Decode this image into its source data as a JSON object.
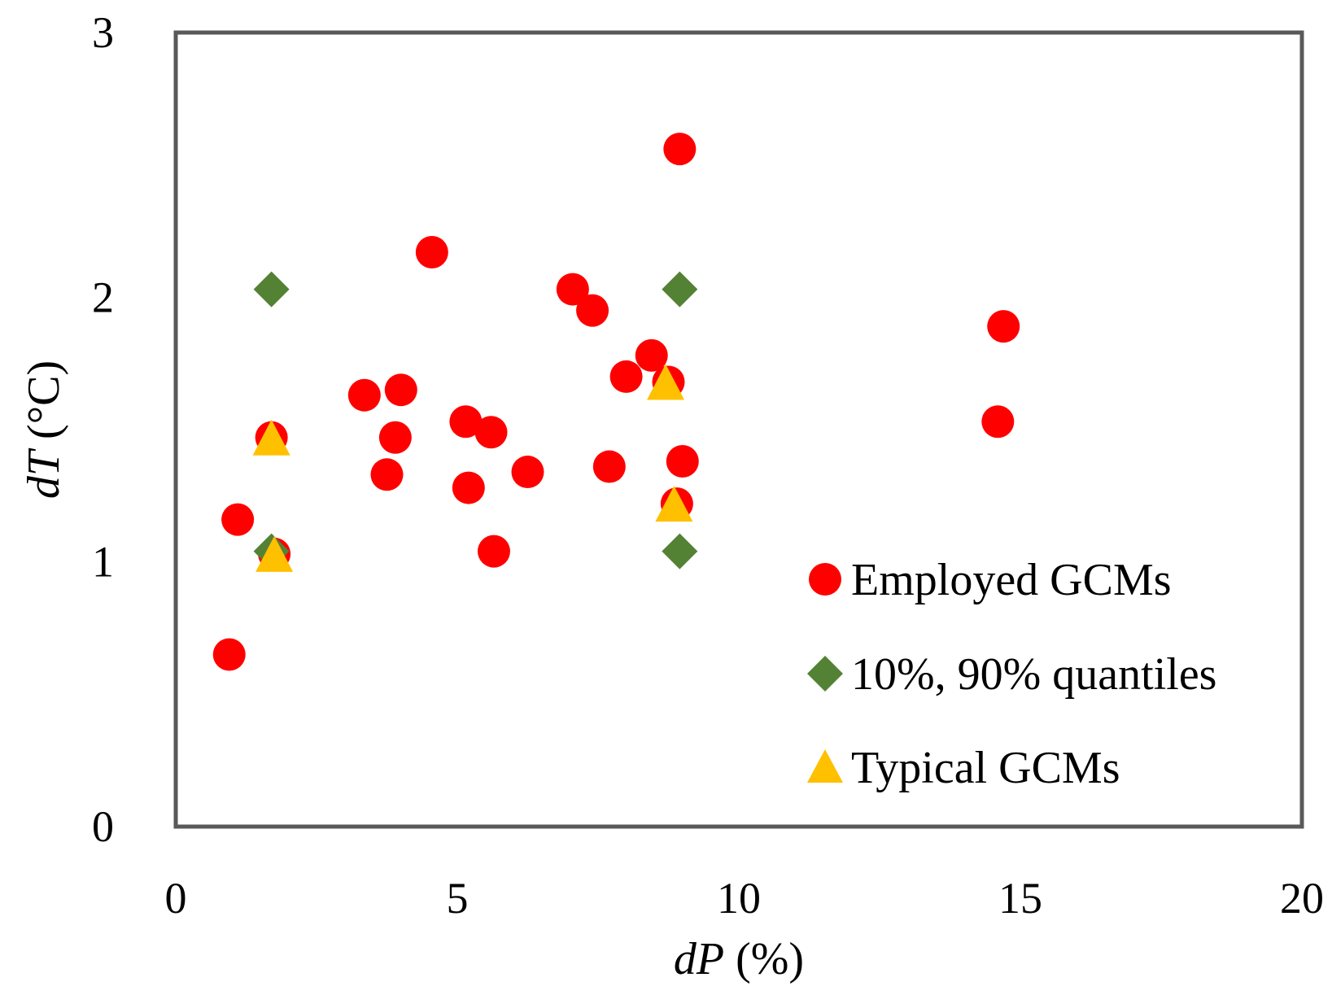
{
  "chart_data": {
    "type": "scatter",
    "title": "",
    "xlabel": {
      "var": "dP",
      "unit": " (%)"
    },
    "ylabel": {
      "var": "dT",
      "unit": " (°C)"
    },
    "xlim": [
      0,
      20
    ],
    "ylim": [
      0,
      3
    ],
    "xticks": [
      0,
      5,
      10,
      15,
      20
    ],
    "yticks": [
      0,
      1,
      2,
      3
    ],
    "grid": false,
    "legend_position": "bottom-right",
    "series": [
      {
        "name": "Employed GCMs",
        "marker": "circle",
        "color": "#ff0000",
        "x": [
          0.95,
          1.1,
          1.7,
          1.75,
          3.35,
          3.75,
          3.9,
          4.0,
          4.55,
          5.15,
          5.2,
          5.6,
          5.65,
          6.25,
          7.05,
          7.4,
          7.7,
          8.0,
          8.45,
          8.75,
          8.9,
          8.95,
          9.0,
          14.6,
          14.7
        ],
        "y": [
          0.65,
          1.16,
          1.47,
          1.03,
          1.63,
          1.33,
          1.47,
          1.65,
          2.17,
          1.53,
          1.28,
          1.49,
          1.04,
          1.34,
          2.03,
          1.95,
          1.36,
          1.7,
          1.78,
          1.68,
          1.22,
          2.56,
          1.38,
          1.53,
          1.89
        ]
      },
      {
        "name": "10%, 90% quantiles",
        "marker": "diamond",
        "color": "#548235",
        "x": [
          1.7,
          1.7,
          8.95,
          8.95
        ],
        "y": [
          2.03,
          1.04,
          2.03,
          1.04
        ]
      },
      {
        "name": "Typical GCMs",
        "marker": "triangle",
        "color": "#ffc000",
        "x": [
          1.7,
          1.75,
          8.7,
          8.85
        ],
        "y": [
          1.47,
          1.03,
          1.68,
          1.22
        ]
      }
    ]
  },
  "colors": {
    "frame": "#595959",
    "employed": "#ff0000",
    "quantiles": "#548235",
    "typical": "#ffc000"
  }
}
